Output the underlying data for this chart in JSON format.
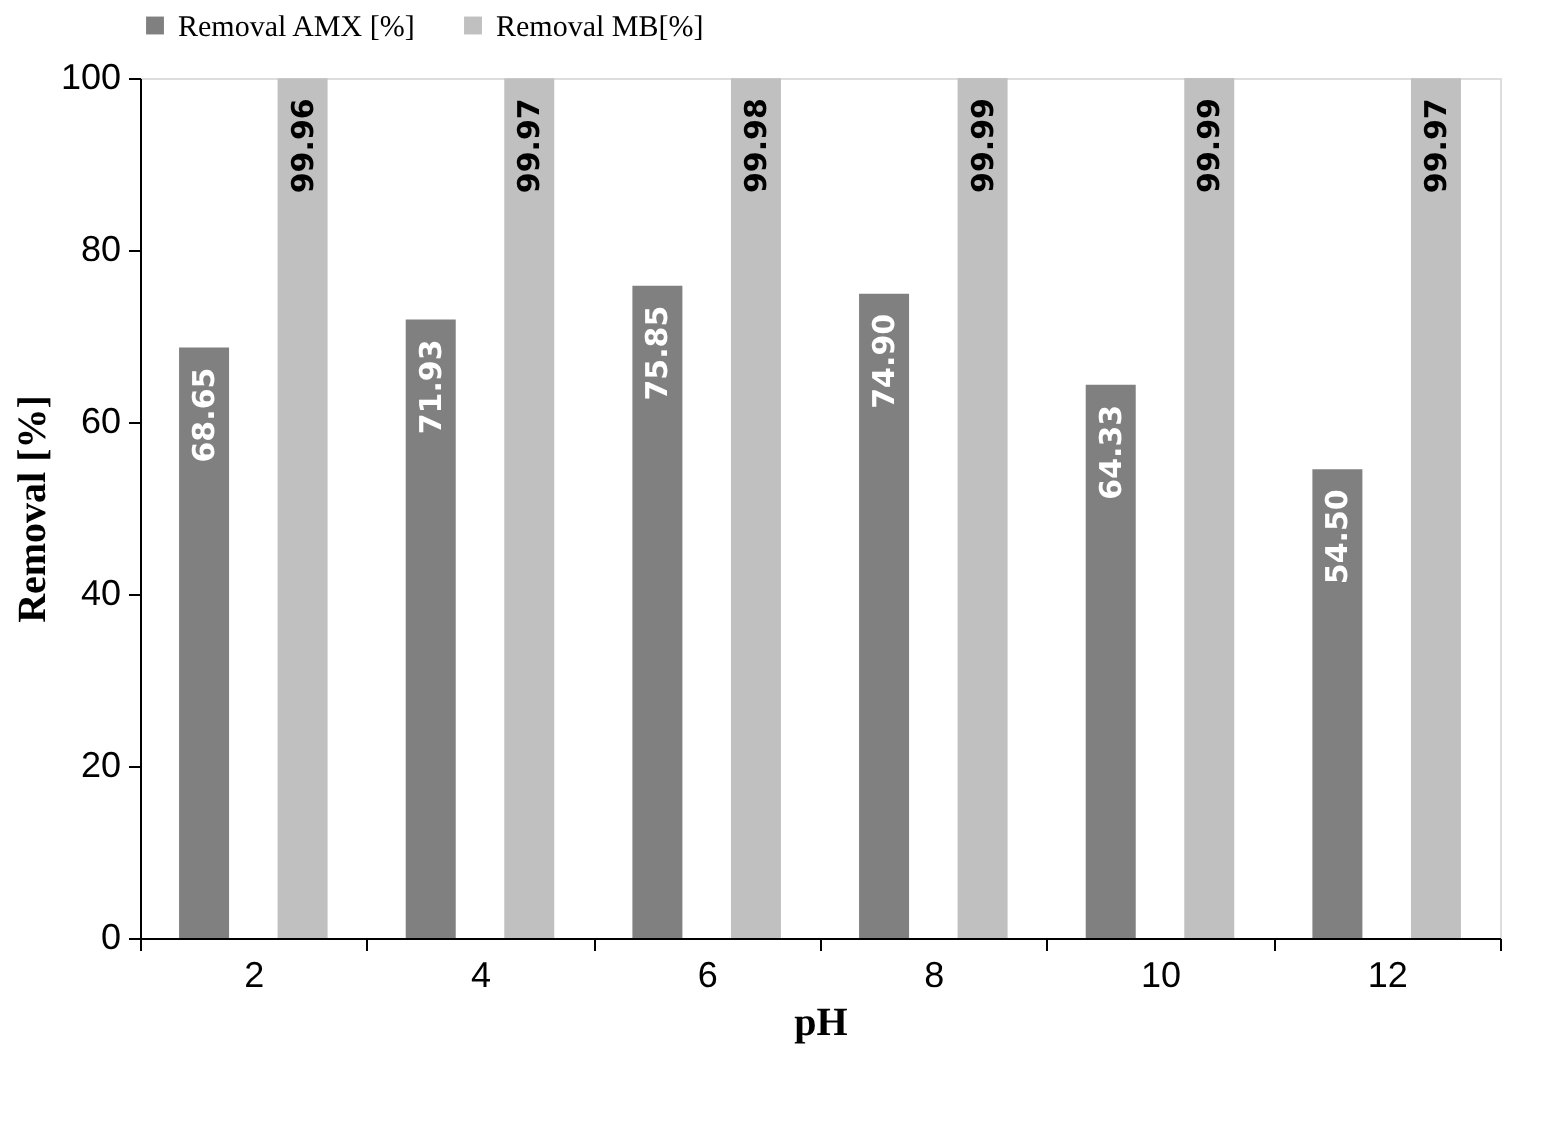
{
  "chart_data": {
    "type": "bar",
    "xlabel": "pH",
    "ylabel": "Removal [%]",
    "categories": [
      "2",
      "4",
      "6",
      "8",
      "10",
      "12"
    ],
    "series": [
      {
        "name": "Removal AMX [%]",
        "color": "#808080",
        "values": [
          68.65,
          71.93,
          75.85,
          74.9,
          64.33,
          54.5
        ],
        "value_labels": [
          "68.65",
          "71.93",
          "75.85",
          "74.90",
          "64.33",
          "54.50"
        ]
      },
      {
        "name": "Removal MB[%]",
        "color": "#c0c0c0",
        "values": [
          99.96,
          99.97,
          99.98,
          99.99,
          99.99,
          99.97
        ],
        "value_labels": [
          "99.96",
          "99.97",
          "99.98",
          "99.99",
          "99.99",
          "99.97"
        ]
      }
    ],
    "ylim": [
      0,
      100
    ],
    "yticks": [
      0,
      20,
      40,
      60,
      80,
      100
    ],
    "grid": false,
    "legend": "top"
  }
}
